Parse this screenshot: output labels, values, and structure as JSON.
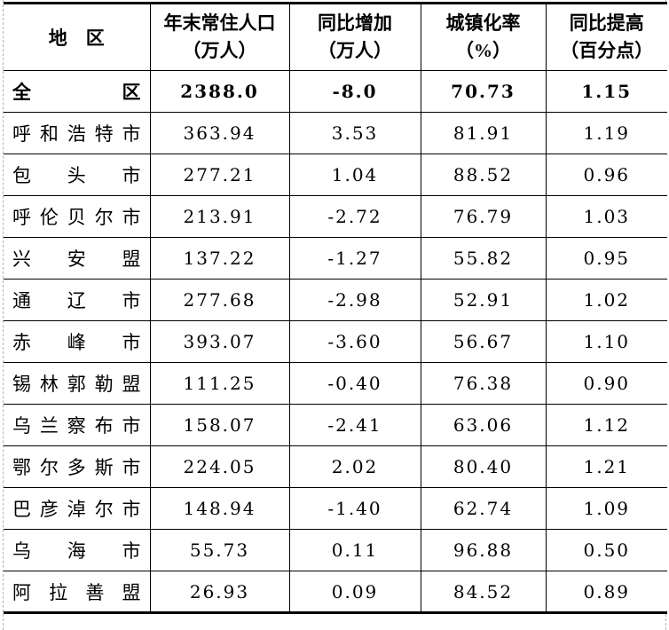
{
  "colors": {
    "background": "#ffffff",
    "text": "#000000",
    "table_border": "#000000",
    "page_edge_dashed": "#b2b2b2"
  },
  "table": {
    "header": {
      "region": "地　区",
      "columns": [
        {
          "title": "年末常住人口",
          "unit": "（万人）"
        },
        {
          "title": "同比增加",
          "unit": "（万人）"
        },
        {
          "title": "城镇化率",
          "unit": "（%）"
        },
        {
          "title": "同比提高",
          "unit": "（百分点）"
        }
      ]
    },
    "rows": [
      {
        "region": "全区",
        "population": "2388.0",
        "change": "-8.0",
        "urbanization": "70.73",
        "urbanization_change": "1.15",
        "emphasis": true
      },
      {
        "region": "呼和浩特市",
        "population": "363.94",
        "change": "3.53",
        "urbanization": "81.91",
        "urbanization_change": "1.19",
        "emphasis": false
      },
      {
        "region": "包头市",
        "population": "277.21",
        "change": "1.04",
        "urbanization": "88.52",
        "urbanization_change": "0.96",
        "emphasis": false
      },
      {
        "region": "呼伦贝尔市",
        "population": "213.91",
        "change": "-2.72",
        "urbanization": "76.79",
        "urbanization_change": "1.03",
        "emphasis": false
      },
      {
        "region": "兴安盟",
        "population": "137.22",
        "change": "-1.27",
        "urbanization": "55.82",
        "urbanization_change": "0.95",
        "emphasis": false
      },
      {
        "region": "通辽市",
        "population": "277.68",
        "change": "-2.98",
        "urbanization": "52.91",
        "urbanization_change": "1.02",
        "emphasis": false
      },
      {
        "region": "赤峰市",
        "population": "393.07",
        "change": "-3.60",
        "urbanization": "56.67",
        "urbanization_change": "1.10",
        "emphasis": false
      },
      {
        "region": "锡林郭勒盟",
        "population": "111.25",
        "change": "-0.40",
        "urbanization": "76.38",
        "urbanization_change": "0.90",
        "emphasis": false
      },
      {
        "region": "乌兰察布市",
        "population": "158.07",
        "change": "-2.41",
        "urbanization": "63.06",
        "urbanization_change": "1.12",
        "emphasis": false
      },
      {
        "region": "鄂尔多斯市",
        "population": "224.05",
        "change": "2.02",
        "urbanization": "80.40",
        "urbanization_change": "1.21",
        "emphasis": false
      },
      {
        "region": "巴彦淖尔市",
        "population": "148.94",
        "change": "-1.40",
        "urbanization": "62.74",
        "urbanization_change": "1.09",
        "emphasis": false
      },
      {
        "region": "乌海市",
        "population": "55.73",
        "change": "0.11",
        "urbanization": "96.88",
        "urbanization_change": "0.50",
        "emphasis": false
      },
      {
        "region": "阿拉善盟",
        "population": "26.93",
        "change": "0.09",
        "urbanization": "84.52",
        "urbanization_change": "0.89",
        "emphasis": false
      }
    ]
  }
}
